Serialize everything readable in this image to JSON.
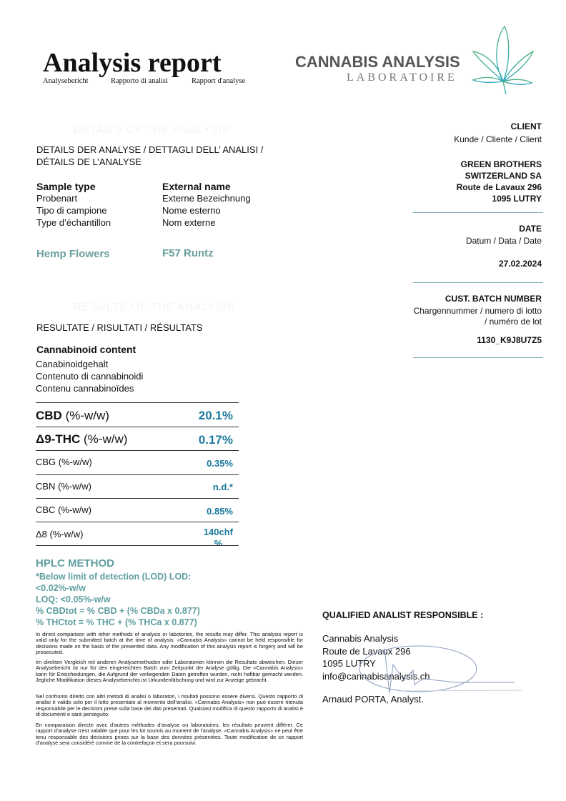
{
  "header": {
    "title": "Analysis report",
    "subtitles": [
      "Analysebericht",
      "Rapporto di analisi",
      "Rapport d'analyse"
    ],
    "logo": {
      "line1": "CANNABIS ANALYSIS",
      "line2": "LABORATOIRE"
    }
  },
  "details": {
    "ghost_heading": "DETAILS OF THE ANALYSIS",
    "heading": "DETAILS DER ANALYSE / DETTAGLI DELL’ ANALISI / DÉTAILS DE L’ANALYSE",
    "sample_type": {
      "label": "Sample type",
      "translations": [
        "Probenart",
        "Tipo di campione",
        "Type d’échantillon"
      ],
      "value": "Hemp Flowers"
    },
    "external_name": {
      "label": "External name",
      "translations": [
        "Externe Bezeichnung",
        "Nome esterno",
        "Nom externe"
      ],
      "value": "F57 Runtz"
    }
  },
  "client": {
    "label": "CLIENT",
    "translations": "Kunde / Cliente / Client",
    "lines": [
      "GREEN BROTHERS",
      "SWITZERLAND SA",
      "Route de Lavaux 296",
      "1095 LUTRY"
    ]
  },
  "date": {
    "label": "DATE",
    "translations": "Datum / Data / Date",
    "value": "27.02.2024"
  },
  "batch": {
    "label": "CUST. BATCH NUMBER",
    "translations": [
      "Chargennummer / numero di lotto",
      "/ numéro de lot"
    ],
    "value": "1130_K9J8U7Z5"
  },
  "results": {
    "ghost_heading": "RESULTS OF THE ANALYSIS",
    "heading": "RESULTATE / RISULTATI / RÉSULTATS",
    "content_label": "Cannabinoid content",
    "content_translations": [
      "Canabinoidgehalt",
      "Contenuto di cannabinoidi",
      "Contenu cannabinoïdes"
    ],
    "rows": [
      {
        "name": "CBD",
        "unit": " (%-w/w)",
        "value": "20.1%"
      },
      {
        "name": "Δ9-THC",
        "unit": " (%-w/w)",
        "value": "0.17%"
      },
      {
        "name": "CBG",
        "unit": " (%-w/w)",
        "value": "0.35%"
      },
      {
        "name": "CBN",
        "unit": " (%-w/w)",
        "value": "n.d.*"
      },
      {
        "name": "CBC",
        "unit": " (%-w/w)",
        "value": "0.85%"
      },
      {
        "name": "Δ8",
        "unit": " (%-w/w)",
        "value": "140chf",
        "value_overflow": "%"
      }
    ]
  },
  "method": {
    "title": "HPLC METHOD",
    "lines": [
      "*Below limit of detection (LOD) LOD:",
      "<0.02%-w/w",
      "LOQ: <0.05%-w/w",
      "% CBDtot = % CBD + (% CBDa x 0.877)",
      "% THCtot = % THC + (% THCa x 0.877)"
    ]
  },
  "disclaimers": [
    "In direct comparison with other methods of analysis or labotories, the results may differ. This analysis report is valid only for the submitted batch at the time of analysis. «Cannabis Analysis» cannot be held responsible for decisions made on the basis of the presented data. Any modification of this analysis report is forgery and will be prosecuted.",
    "Im direkten Vergleich mit anderen Analysemethoden oder Laboratorien können die Resultate abweichen. Dieser Analysebericht ist nur für den eingereichten Batch zum Zeitpunkt der Analyse gültig. Die «Cannabis Analysis» kann für Entscheidungen, die Aufgrund der vorliegenden Daten getroffen wurden, nicht haftbar gemacht werden. Jegliche Modifikation dieses Analyseberichts ist Urkundenfälschung und wird zur Anzeige gebracht.",
    "Nel confronto diretto con altri metodi di analisi o laboratori, i risultati possono essere diversi. Questo rapporto di analisi è valido solo per il lotto presentato al momento dell'analisi. «Cannabis Analysis» non può essere ritenuta responsabile per le decisioni prese sulla base dei dati presentati. Qualsiasi modifica di questo rapporto di analisi è di documenti e sarà perseguito.",
    "En comparaison directe avec d’autres méthodes d’analyse ou laboratoires, les résultats peuvent différer. Ce rapport d’analyse n’est valable que pour les lot soumis au moment de l’analyse. «Cannabis Analysis» ne peut être tenu responsable des décisions prises sur la base des données présentées. Toute modification de ce rapport d’analyse sera considéré comme de la contrefaçon et sera poursuivi."
  ],
  "analyst": {
    "heading": "QUALIFIED ANALIST RESPONSIBLE :",
    "lines": [
      "Cannabis Analysis",
      "Route de Lavaux 296",
      "1095 LUTRY",
      "info@cannabisanalysis.ch"
    ],
    "signature_name": "Arnaud PORTA, Analyst."
  },
  "colors": {
    "value_blue": "#1b7a9e",
    "accent_green": "#6a9f9c",
    "logo_grey": "#555555"
  }
}
